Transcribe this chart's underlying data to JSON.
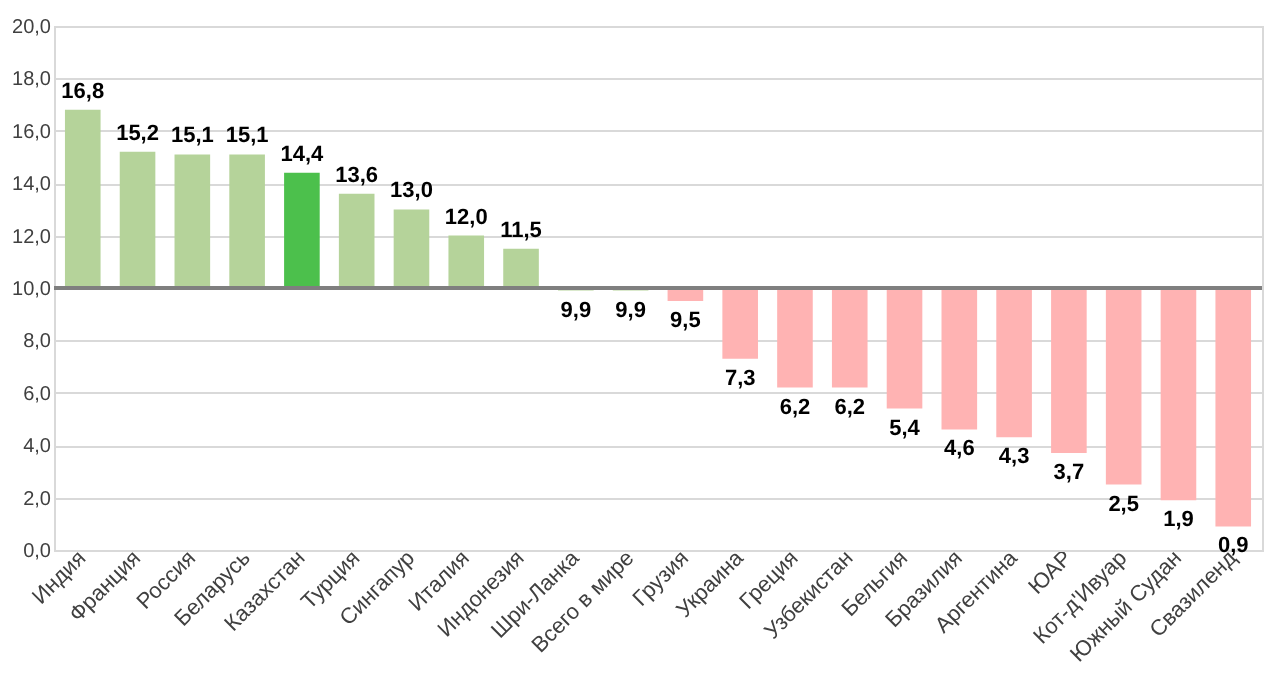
{
  "chart_data": {
    "type": "bar",
    "categories": [
      "Индия",
      "Франция",
      "Россия",
      "Беларусь",
      "Казахстан",
      "Турция",
      "Сингапур",
      "Италия",
      "Индонезия",
      "Шри-Ланка",
      "Всего в мире",
      "Грузия",
      "Украина",
      "Греция",
      "Узбекистан",
      "Бельгия",
      "Бразилия",
      "Аргентина",
      "ЮАР",
      "Кот-д'Ивуар",
      "Южный Судан",
      "Свазиленд"
    ],
    "base": [
      10,
      10,
      10,
      10,
      10,
      10,
      10,
      10,
      10,
      10,
      10,
      10,
      10,
      10,
      10,
      10,
      10,
      10,
      10,
      10,
      10,
      10
    ],
    "values": [
      6.8,
      5.2,
      5.1,
      5.1,
      4.4,
      3.6,
      3.0,
      2.0,
      1.5,
      -0.1,
      -0.1,
      -0.5,
      -2.7,
      -3.8,
      -3.8,
      -4.6,
      -5.4,
      -5.7,
      -6.3,
      -7.5,
      -8.1,
      -9.1
    ],
    "value_labels": [
      "16,8",
      "15,2",
      "15,1",
      "15,1",
      "14,4",
      "13,6",
      "13,0",
      "12,0",
      "11,5",
      "9,9",
      "9,9",
      "9,5",
      "7,3",
      "6,2",
      "6,2",
      "5,4",
      "4,6",
      "4,3",
      "3,7",
      "2,5",
      "1,9",
      "0,9"
    ],
    "colors": [
      "#b5d39a",
      "#b5d39a",
      "#b5d39a",
      "#b5d39a",
      "#4cc04c",
      "#b5d39a",
      "#b5d39a",
      "#b5d39a",
      "#b5d39a",
      "#b5d39a",
      "#b5d39a",
      "#ffb3b3",
      "#ffb3b3",
      "#ffb3b3",
      "#ffb3b3",
      "#ffb3b3",
      "#ffb3b3",
      "#ffb3b3",
      "#ffb3b3",
      "#ffb3b3",
      "#ffb3b3",
      "#ffb3b3"
    ],
    "ylim": [
      0,
      20
    ],
    "yticks": [
      {
        "value": 0,
        "label": "0,0"
      },
      {
        "value": 2,
        "label": "2,0"
      },
      {
        "value": 4,
        "label": "4,0"
      },
      {
        "value": 6,
        "label": "6,0"
      },
      {
        "value": 8,
        "label": "8,0"
      },
      {
        "value": 10,
        "label": "10,0"
      },
      {
        "value": 12,
        "label": "12,0"
      },
      {
        "value": 14,
        "label": "14,0"
      },
      {
        "value": 16,
        "label": "16,0"
      },
      {
        "value": 18,
        "label": "18,0"
      },
      {
        "value": 20,
        "label": "20,0"
      }
    ],
    "ref_lines": [
      {
        "axis": "y",
        "value": 10,
        "label": null,
        "color": "#7f7f7f"
      }
    ],
    "grid": "y"
  }
}
